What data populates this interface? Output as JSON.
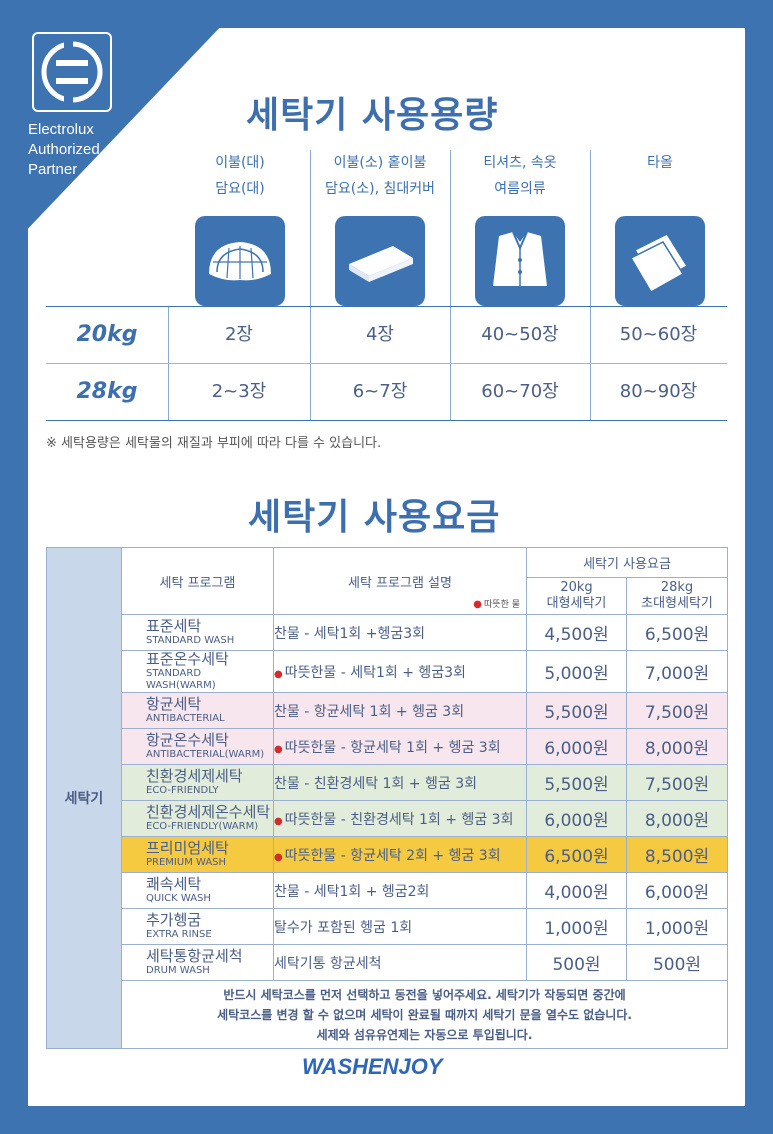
{
  "brand": {
    "lines": [
      "Electrolux",
      "Authorized",
      "Partner"
    ],
    "colors": {
      "blue": "#3e73b2",
      "pink": "#f7e6ee",
      "green": "#e2ecda",
      "gold": "#f5c940"
    }
  },
  "capacity": {
    "title": "세탁기 사용용량",
    "columns": [
      {
        "line1": "이불(대)",
        "line2": "담요(대)",
        "icon": "duvet-icon"
      },
      {
        "line1": "이불(소) 홑이불",
        "line2": "담요(소), 침대커버",
        "icon": "folded-blanket-icon"
      },
      {
        "line1": "티셔츠, 속옷",
        "line2": "여름의류",
        "icon": "shirt-icon"
      },
      {
        "line1": "",
        "line2": "타올",
        "icon": "towel-icon"
      }
    ],
    "rows": [
      {
        "kg": "20kg",
        "values": [
          "2장",
          "4장",
          "40~50장",
          "50~60장"
        ]
      },
      {
        "kg": "28kg",
        "values": [
          "2~3장",
          "6~7장",
          "60~70장",
          "80~90장"
        ]
      }
    ],
    "note": "※ 세탁용량은 세탁물의 재질과 부피에 따라 다를 수 있습니다."
  },
  "fees": {
    "title": "세탁기 사용요금",
    "side_label": "세탁기",
    "header": {
      "program": "세탁 프로그램",
      "description": "세탁 프로그램 설명",
      "warm_legend": "따뜻한 물",
      "fee_group": "세탁기 사용요금",
      "col20_kg": "20kg",
      "col20_name": "대형세탁기",
      "col28_kg": "28kg",
      "col28_name": "초대형세탁기"
    },
    "rows": [
      {
        "ko": "표준세탁",
        "en": "STANDARD WASH",
        "desc": "찬물 - 세탁1회 +헹굼3회",
        "p20": "4,500원",
        "p28": "6,500원"
      },
      {
        "ko": "표준온수세탁",
        "en": "STANDARD WASH(WARM)",
        "desc": "따뜻한물 - 세탁1회 + 헹굼3회",
        "p20": "5,000원",
        "p28": "7,000원"
      },
      {
        "ko": "항균세탁",
        "en": "ANTIBACTERIAL",
        "desc": "찬물 - 항균세탁 1회 + 헹굼 3회",
        "p20": "5,500원",
        "p28": "7,500원"
      },
      {
        "ko": "항균온수세탁",
        "en": "ANTIBACTERIAL(WARM)",
        "desc": "따뜻한물 - 항균세탁 1회 + 헹굼 3회",
        "p20": "6,000원",
        "p28": "8,000원"
      },
      {
        "ko": "친환경세제세탁",
        "en": "ECO-FRIENDLY",
        "desc": "찬물 - 친환경세탁 1회 + 헹굼 3회",
        "p20": "5,500원",
        "p28": "7,500원"
      },
      {
        "ko": "친환경세제온수세탁",
        "en": "ECO-FRIENDLY(WARM)",
        "desc": "따뜻한물 - 친환경세탁 1회 + 헹굼 3회",
        "p20": "6,000원",
        "p28": "8,000원"
      },
      {
        "ko": "프리미엄세탁",
        "en": "PREMIUM WASH",
        "desc": "따뜻한물 - 항균세탁 2회 + 헹굼 3회",
        "p20": "6,500원",
        "p28": "8,500원"
      },
      {
        "ko": "쾌속세탁",
        "en": "QUICK WASH",
        "desc": "찬물 - 세탁1회 + 헹굼2회",
        "p20": "4,000원",
        "p28": "6,000원"
      },
      {
        "ko": "추가헹굼",
        "en": "EXTRA RINSE",
        "desc": "탈수가 포함된 헹굼 1회",
        "p20": "1,000원",
        "p28": "1,000원"
      },
      {
        "ko": "세탁통항균세척",
        "en": "DRUM WASH",
        "desc": "세탁기통 항균세척",
        "p20": "500원",
        "p28": "500원"
      }
    ],
    "footnote": [
      "반드시 세탁코스를 먼저 선택하고 동전을 넣어주세요. 세탁기가 작동되면 중간에",
      "세탁코스를 변경 할 수 없으며 세탁이 완료될 때까지 세탁기 문을 열수도 없습니다.",
      "세제와 섬유유연제는 자동으로 투입됩니다."
    ]
  },
  "footer_logo": "WASHENJOY"
}
